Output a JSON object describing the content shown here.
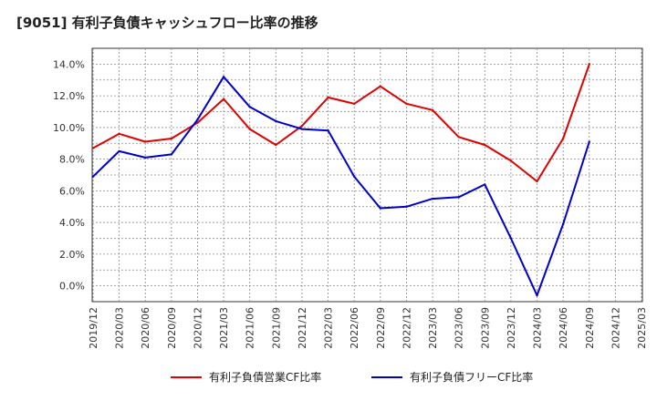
{
  "chart_data": {
    "type": "line",
    "title": "[9051]  有利子負債キャッシュフロー比率の推移",
    "x": [
      "2019/12",
      "2020/03",
      "2020/06",
      "2020/09",
      "2020/12",
      "2021/03",
      "2021/06",
      "2021/09",
      "2021/12",
      "2022/03",
      "2022/06",
      "2022/09",
      "2022/12",
      "2023/03",
      "2023/06",
      "2023/09",
      "2023/12",
      "2024/03",
      "2024/06",
      "2024/09",
      "2024/12",
      "2025/03"
    ],
    "yticks": [
      "0.0%",
      "2.0%",
      "4.0%",
      "6.0%",
      "8.0%",
      "10.0%",
      "12.0%",
      "14.0%"
    ],
    "ylim": [
      -1.0,
      15.0
    ],
    "grid": true,
    "legend_position": "bottom",
    "series": [
      {
        "name": "有利子負債営業CF比率",
        "color": "#e00000",
        "values": [
          8.7,
          9.6,
          9.1,
          9.3,
          10.3,
          11.8,
          9.9,
          8.9,
          10.1,
          11.9,
          11.5,
          12.6,
          11.5,
          11.1,
          9.4,
          8.9,
          7.9,
          6.6,
          9.3,
          14.0,
          null,
          null
        ]
      },
      {
        "name": "有利子負債フリーCF比率",
        "color": "#0000cc",
        "values": [
          6.9,
          8.5,
          8.1,
          8.3,
          10.5,
          13.2,
          11.3,
          10.4,
          9.9,
          9.8,
          6.9,
          4.9,
          5.0,
          5.5,
          5.6,
          6.4,
          3.0,
          -0.6,
          3.9,
          9.1,
          null,
          null
        ]
      }
    ]
  }
}
